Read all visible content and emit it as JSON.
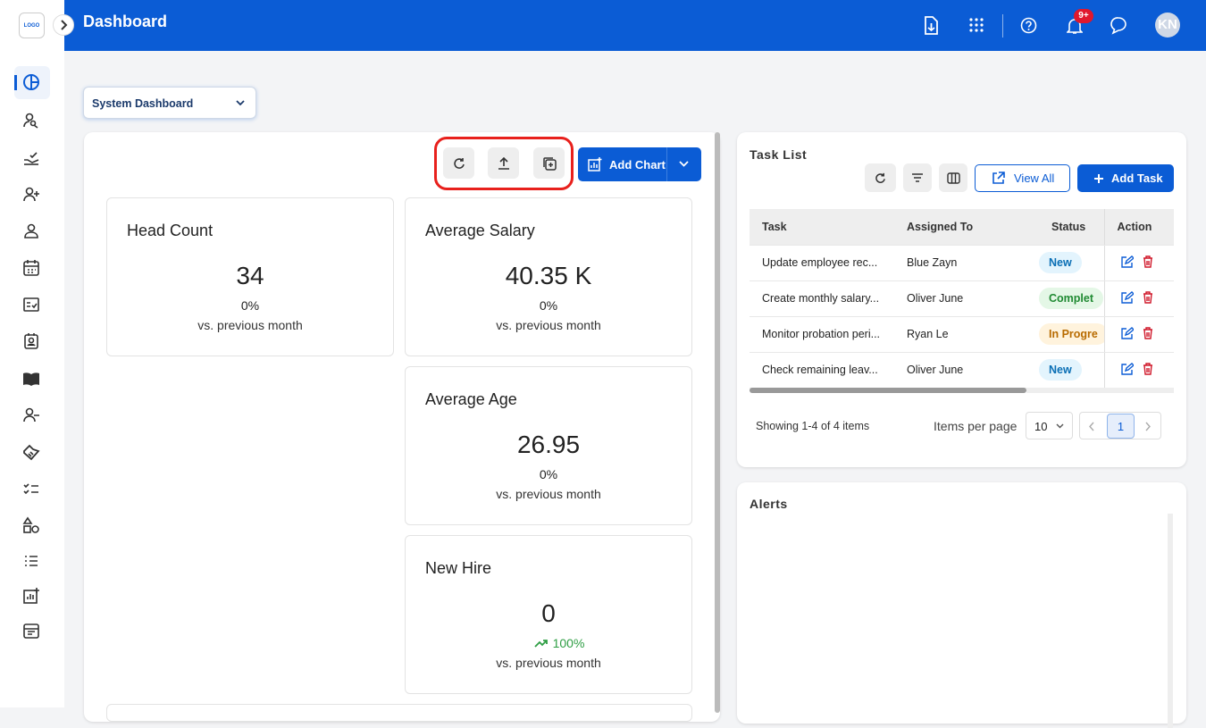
{
  "header": {
    "logo": "LOGO",
    "title": "Dashboard",
    "notification_badge": "9+",
    "avatar": "KN"
  },
  "dashboard_select": "System Dashboard",
  "toolbar": {
    "add_chart": "Add Chart"
  },
  "kpi_cards": [
    {
      "title": "Head Count",
      "value": "34",
      "change": "0%",
      "caption": "vs. previous month"
    },
    {
      "title": "Average Salary",
      "value": "40.35 K",
      "change": "0%",
      "caption": "vs. previous month"
    },
    {
      "title": "Average Age",
      "value": "26.95",
      "change": "0%",
      "caption": "vs. previous month"
    },
    {
      "title": "New Hire",
      "value": "0",
      "change": "100%",
      "caption": "vs. previous month"
    }
  ],
  "task_list": {
    "title": "Task List",
    "view_all": "View All",
    "add_task": "Add Task",
    "columns": [
      "Task",
      "Assigned To",
      "Status",
      "Action"
    ],
    "rows": [
      [
        "Update employee rec...",
        "Blue Zayn",
        "New"
      ],
      [
        "Create monthly salary...",
        "Oliver June",
        "Complet"
      ],
      [
        "Monitor probation peri...",
        "Ryan Le",
        "In Progre"
      ],
      [
        "Check remaining leav...",
        "Oliver June",
        "New"
      ]
    ],
    "footer": "Showing 1-4 of 4 items",
    "items_per_page_label": "Items per page",
    "items_per_page": "10",
    "page": "1"
  },
  "alerts": {
    "title": "Alerts"
  }
}
